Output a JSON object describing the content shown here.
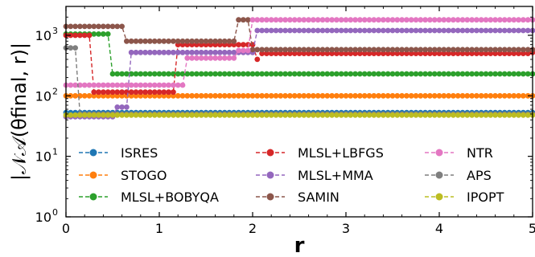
{
  "chart_data": {
    "type": "line",
    "xlabel": "r",
    "ylabel": "|𝒩𝒜(θfinal, r)|",
    "xlim": [
      0,
      5
    ],
    "ylim": [
      1,
      3000
    ],
    "yscale": "log",
    "xticks": [
      0,
      1,
      2,
      3,
      4,
      5
    ],
    "yticks": [
      1,
      10,
      100,
      1000
    ],
    "xtick_labels": [
      "0",
      "1",
      "2",
      "3",
      "4",
      "5"
    ],
    "ytick_labels": [
      "10^0",
      "10^1",
      "10^2",
      "10^3"
    ],
    "grid": false,
    "legend_position": "lower-center",
    "legend_columns": 3,
    "series": [
      {
        "name": "ISRES",
        "color": "#1f77b4",
        "segments": [
          [
            0,
            53
          ],
          [
            5,
            53
          ]
        ]
      },
      {
        "name": "STOGO",
        "color": "#ff7f0e",
        "segments": [
          [
            0,
            100
          ],
          [
            5,
            100
          ]
        ]
      },
      {
        "name": "MLSL+BOBYQA",
        "color": "#2ca02c",
        "segments": [
          [
            0,
            1050
          ],
          [
            0.47,
            1050
          ],
          [
            0.47,
            60
          ],
          [
            0.47,
            50
          ],
          [
            0.47,
            230
          ],
          [
            1.0,
            230
          ],
          [
            1.0,
            230
          ],
          [
            1.0,
            230
          ],
          [
            1.0,
            230
          ],
          [
            1.0,
            230
          ],
          [
            1.0,
            230
          ],
          [
            1.0,
            230
          ],
          [
            1.0,
            230
          ],
          [
            1.0,
            230
          ],
          [
            1.0,
            230
          ],
          [
            1.0,
            230
          ],
          [
            1.0,
            230
          ],
          [
            1.0,
            230
          ],
          [
            1.0,
            230
          ],
          [
            1.0,
            230
          ],
          [
            1.0,
            230
          ],
          [
            1.0,
            230
          ],
          [
            1.0,
            230
          ],
          [
            1.0,
            230
          ],
          [
            1.0,
            230
          ],
          [
            1.0,
            230
          ],
          [
            1.0,
            230
          ],
          [
            1.0,
            230
          ],
          [
            1.0,
            230
          ],
          [
            1.0,
            230
          ],
          [
            1.0,
            230
          ],
          [
            1.0,
            230
          ],
          [
            1.0,
            230
          ],
          [
            1.0,
            230
          ],
          [
            1.0,
            230
          ],
          [
            1.0,
            230
          ],
          [
            1.0,
            230
          ],
          [
            1.0,
            230
          ]
        ]
      },
      {
        "name": "MLSL+LBFGS",
        "color": "#d62728",
        "segments": [
          [
            0.3,
            1000
          ],
          [
            0.3,
            115
          ],
          [
            1.2,
            115
          ],
          [
            1.2,
            700
          ],
          [
            2.05,
            700
          ],
          [
            2.05,
            400
          ],
          [
            2.1,
            500
          ],
          [
            5,
            520
          ]
        ]
      },
      {
        "name": "MLSL+MMA",
        "color": "#9467bd",
        "segments": [
          [
            0,
            45
          ],
          [
            0.45,
            45
          ],
          [
            0.55,
            1000
          ],
          [
            0.55,
            65
          ],
          [
            0.7,
            65
          ],
          [
            0.7,
            520
          ],
          [
            1.25,
            520
          ],
          [
            1.25,
            520
          ],
          [
            2.05,
            520
          ],
          [
            2.05,
            1200
          ],
          [
            5,
            1200
          ]
        ]
      },
      {
        "name": "SAMIN",
        "color": "#8c564b",
        "segments": [
          [
            0,
            1400
          ],
          [
            0.65,
            1400
          ],
          [
            0.65,
            800
          ],
          [
            1.85,
            800
          ],
          [
            1.85,
            1800
          ],
          [
            2.0,
            1800
          ],
          [
            2.0,
            580
          ],
          [
            5,
            580
          ]
        ]
      },
      {
        "name": "NTR",
        "color": "#e377c2",
        "segments": [
          [
            0,
            150
          ],
          [
            1.3,
            150
          ],
          [
            1.3,
            420
          ],
          [
            1.85,
            420
          ],
          [
            1.85,
            560
          ],
          [
            2.0,
            560
          ],
          [
            2.0,
            1800
          ],
          [
            5,
            1800
          ]
        ]
      },
      {
        "name": "APS",
        "color": "#7f7f7f",
        "segments": [
          [
            0,
            620
          ],
          [
            0.15,
            620
          ],
          [
            0.15,
            50
          ],
          [
            5,
            50
          ]
        ]
      },
      {
        "name": "IPOPT",
        "color": "#bcbd22",
        "segments": [
          [
            0,
            48
          ],
          [
            5,
            48
          ]
        ]
      }
    ]
  }
}
